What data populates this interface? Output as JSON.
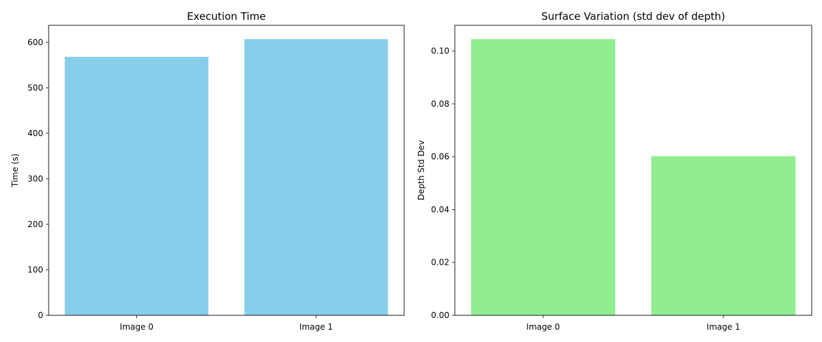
{
  "chart_data": [
    {
      "type": "bar",
      "title": "Execution Time",
      "xlabel": "",
      "ylabel": "Time (s)",
      "categories": [
        "Image 0",
        "Image 1"
      ],
      "values": [
        568,
        607
      ],
      "ylim": [
        0,
        637.35
      ],
      "yticks": [
        0,
        100,
        200,
        300,
        400,
        500,
        600
      ],
      "ytick_labels": [
        "0",
        "100",
        "200",
        "300",
        "400",
        "500",
        "600"
      ],
      "bar_color": "#87CEEB",
      "grid": false
    },
    {
      "type": "bar",
      "title": "Surface Variation (std dev of depth)",
      "xlabel": "",
      "ylabel": "Depth Std Dev",
      "categories": [
        "Image 0",
        "Image 1"
      ],
      "values": [
        0.1045,
        0.0602
      ],
      "ylim": [
        0,
        0.10973
      ],
      "yticks": [
        0,
        0.02,
        0.04,
        0.06,
        0.08,
        0.1
      ],
      "ytick_labels": [
        "0.00",
        "0.02",
        "0.04",
        "0.06",
        "0.08",
        "0.10"
      ],
      "bar_color": "#90EE90",
      "grid": false
    }
  ]
}
